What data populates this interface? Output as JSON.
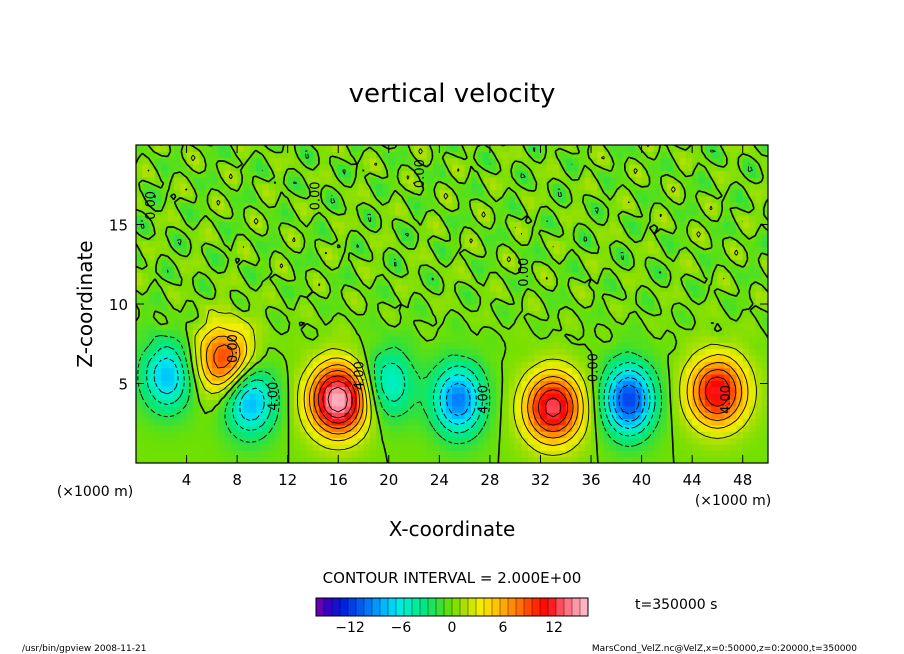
{
  "chart_data": {
    "type": "heatmap",
    "title": "vertical velocity",
    "xlabel": "X-coordinate",
    "ylabel": "Z-coordinate",
    "x_unit_left": "(×1000 m)",
    "x_unit_right": "(×1000 m)",
    "y_unit": "(×1000 m)",
    "xlim": [
      0,
      50
    ],
    "ylim": [
      0,
      20
    ],
    "x_ticks": [
      4,
      8,
      12,
      16,
      20,
      24,
      28,
      32,
      36,
      40,
      44,
      48
    ],
    "y_ticks": [
      5,
      10,
      15
    ],
    "contour_interval_label": "CONTOUR INTERVAL = 2.000E+00",
    "time_label": "t=350000 s",
    "colorbar": {
      "min": -16,
      "max": 16,
      "ticks": [
        -12,
        -6,
        0,
        6,
        12
      ],
      "colors": [
        "#7a00b0",
        "#3000c8",
        "#0020e0",
        "#0050f0",
        "#0080ff",
        "#00b8ff",
        "#00e8f0",
        "#00f0b0",
        "#00e880",
        "#30e040",
        "#70e000",
        "#b0e000",
        "#f0f000",
        "#ffd000",
        "#ffa000",
        "#ff7000",
        "#ff3000",
        "#ff0000",
        "#ff5060",
        "#ff90a0",
        "#ffc0d0"
      ]
    },
    "features": [
      {
        "x": 2.5,
        "z": 5.5,
        "w": -8
      },
      {
        "x": 7.0,
        "z": 6.5,
        "w": 10
      },
      {
        "x": 9.0,
        "z": 4.0,
        "w": -9
      },
      {
        "x": 16.0,
        "z": 4.0,
        "w": 16
      },
      {
        "x": 20.0,
        "z": 5.0,
        "w": -6
      },
      {
        "x": 25.5,
        "z": 4.0,
        "w": -10
      },
      {
        "x": 33.0,
        "z": 3.5,
        "w": 13
      },
      {
        "x": 39.0,
        "z": 4.0,
        "w": -12
      },
      {
        "x": 46.0,
        "z": 4.5,
        "w": 12
      }
    ],
    "contour_labels": [
      {
        "text": "0.00",
        "x": 1.5,
        "z": 16.2
      },
      {
        "text": "0.00",
        "x": 14.5,
        "z": 16.8
      },
      {
        "text": "0.00",
        "x": 22.8,
        "z": 18.2
      },
      {
        "text": "0.00",
        "x": 31.0,
        "z": 12.0
      },
      {
        "text": "0.00",
        "x": 8.0,
        "z": 7.2
      },
      {
        "text": "0.00",
        "x": 36.5,
        "z": 6.0
      },
      {
        "text": "4.00",
        "x": 11.2,
        "z": 4.2
      },
      {
        "text": "4.00",
        "x": 18.0,
        "z": 5.5
      },
      {
        "text": "4.00",
        "x": 27.8,
        "z": 4.0
      },
      {
        "text": "4.00",
        "x": 47.0,
        "z": 4.0
      }
    ]
  },
  "footer": {
    "left": "/usr/bin/gpview  2008-11-21",
    "right": "MarsCond_VelZ.nc@VelZ,x=0:50000,z=0:20000,t=350000"
  }
}
